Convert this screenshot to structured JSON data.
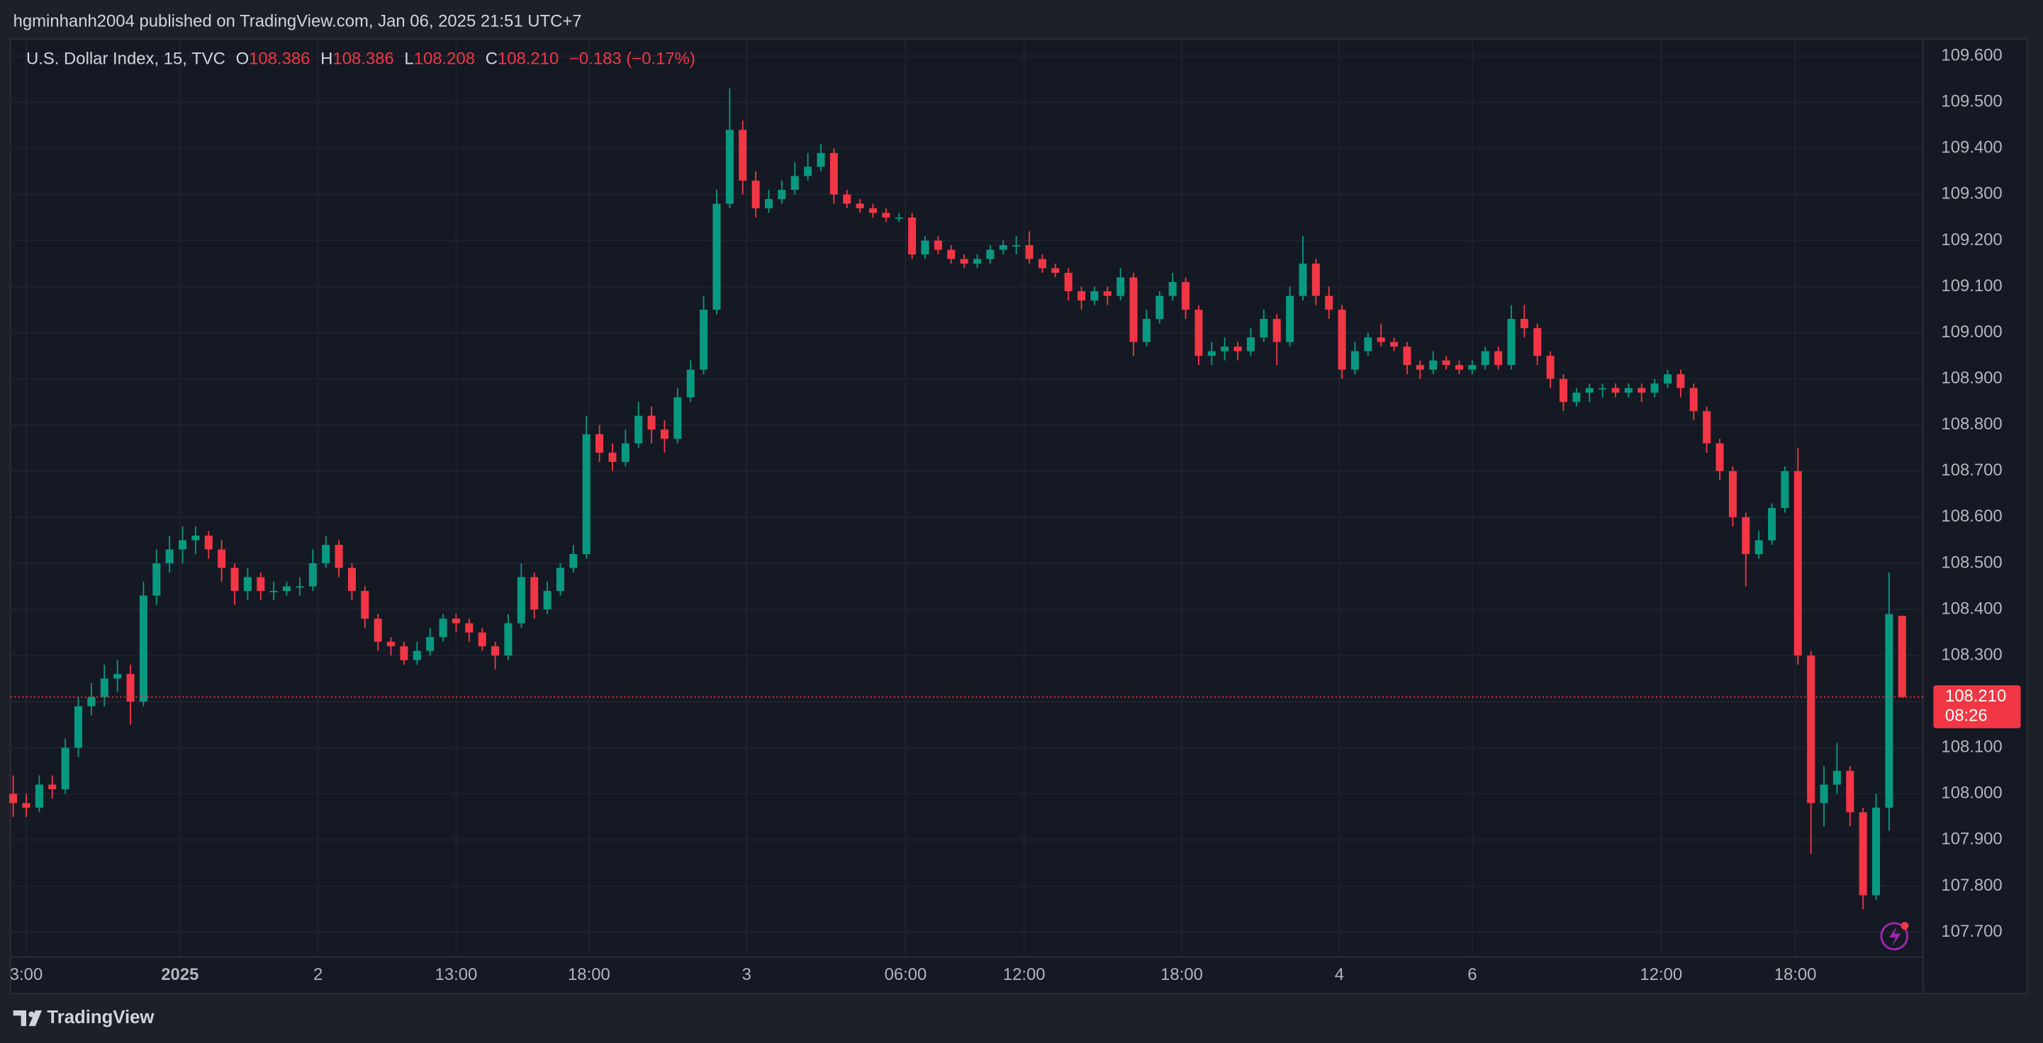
{
  "header": {
    "publisher": "hgminhanh2004 published on TradingView.com, Jan 06, 2025 21:51 UTC+7"
  },
  "footer": {
    "brand": "TradingView"
  },
  "chart_data": {
    "type": "candlestick",
    "symbol": "U.S. Dollar Index, 15, TVC",
    "ohlc_legend": [
      {
        "key": "O",
        "value": "108.386"
      },
      {
        "key": "H",
        "value": "108.386"
      },
      {
        "key": "L",
        "value": "108.208"
      },
      {
        "key": "C",
        "value": "108.210"
      }
    ],
    "change": "−0.183 (−0.17%)",
    "up_color": "#089981",
    "down_color": "#f23645",
    "grid": true,
    "ylim": [
      107.646,
      109.637
    ],
    "yticks": [
      {
        "value": 109.6,
        "label": "109.600"
      },
      {
        "value": 109.5,
        "label": "109.500"
      },
      {
        "value": 109.4,
        "label": "109.400"
      },
      {
        "value": 109.3,
        "label": "109.300"
      },
      {
        "value": 109.2,
        "label": "109.200"
      },
      {
        "value": 109.1,
        "label": "109.100"
      },
      {
        "value": 109.0,
        "label": "109.000"
      },
      {
        "value": 108.9,
        "label": "108.900"
      },
      {
        "value": 108.8,
        "label": "108.800"
      },
      {
        "value": 108.7,
        "label": "108.700"
      },
      {
        "value": 108.6,
        "label": "108.600"
      },
      {
        "value": 108.5,
        "label": "108.500"
      },
      {
        "value": 108.4,
        "label": "108.400"
      },
      {
        "value": 108.3,
        "label": "108.300"
      },
      {
        "value": 108.2,
        "label": "108.200"
      },
      {
        "value": 108.1,
        "label": "108.100"
      },
      {
        "value": 108.0,
        "label": "108.000"
      },
      {
        "value": 107.9,
        "label": "107.900"
      },
      {
        "value": 107.8,
        "label": "107.800"
      },
      {
        "value": 107.7,
        "label": "107.700"
      }
    ],
    "xlim": [
      -0.2,
      146.6
    ],
    "xticks": [
      {
        "value": 1,
        "label": "3:00"
      },
      {
        "value": 12.8,
        "label": "2025"
      },
      {
        "value": 23.4,
        "label": "2"
      },
      {
        "value": 34,
        "label": "13:00"
      },
      {
        "value": 44.2,
        "label": "18:00"
      },
      {
        "value": 56.3,
        "label": "3"
      },
      {
        "value": 68.5,
        "label": "06:00"
      },
      {
        "value": 77.6,
        "label": "12:00"
      },
      {
        "value": 89.7,
        "label": "18:00"
      },
      {
        "value": 101.8,
        "label": "4"
      },
      {
        "value": 112,
        "label": "6"
      },
      {
        "value": 126.5,
        "label": "12:00"
      },
      {
        "value": 136.8,
        "label": "18:00"
      }
    ],
    "last_price": {
      "value": 108.21,
      "label": "108.210"
    },
    "countdown": "08:26",
    "candles": [
      [
        108.0,
        108.04,
        107.95,
        107.98
      ],
      [
        107.98,
        108.0,
        107.95,
        107.97
      ],
      [
        107.97,
        108.04,
        107.96,
        108.02
      ],
      [
        108.02,
        108.04,
        107.99,
        108.01
      ],
      [
        108.01,
        108.12,
        108.0,
        108.1
      ],
      [
        108.1,
        108.21,
        108.08,
        108.19
      ],
      [
        108.19,
        108.24,
        108.17,
        108.21
      ],
      [
        108.21,
        108.28,
        108.19,
        108.25
      ],
      [
        108.25,
        108.29,
        108.22,
        108.26
      ],
      [
        108.26,
        108.28,
        108.15,
        108.2
      ],
      [
        108.2,
        108.46,
        108.19,
        108.43
      ],
      [
        108.43,
        108.53,
        108.41,
        108.5
      ],
      [
        108.5,
        108.56,
        108.48,
        108.53
      ],
      [
        108.53,
        108.58,
        108.5,
        108.55
      ],
      [
        108.55,
        108.58,
        108.52,
        108.56
      ],
      [
        108.56,
        108.57,
        108.51,
        108.53
      ],
      [
        108.53,
        108.55,
        108.46,
        108.49
      ],
      [
        108.49,
        108.5,
        108.41,
        108.44
      ],
      [
        108.44,
        108.49,
        108.42,
        108.47
      ],
      [
        108.47,
        108.48,
        108.42,
        108.44
      ],
      [
        108.44,
        108.46,
        108.42,
        108.44
      ],
      [
        108.44,
        108.46,
        108.43,
        108.45
      ],
      [
        108.45,
        108.47,
        108.43,
        108.45
      ],
      [
        108.45,
        108.53,
        108.44,
        108.5
      ],
      [
        108.5,
        108.56,
        108.49,
        108.54
      ],
      [
        108.54,
        108.55,
        108.47,
        108.49
      ],
      [
        108.49,
        108.5,
        108.42,
        108.44
      ],
      [
        108.44,
        108.45,
        108.36,
        108.38
      ],
      [
        108.38,
        108.39,
        108.31,
        108.33
      ],
      [
        108.33,
        108.34,
        108.3,
        108.32
      ],
      [
        108.32,
        108.33,
        108.28,
        108.29
      ],
      [
        108.29,
        108.33,
        108.28,
        108.31
      ],
      [
        108.31,
        108.36,
        108.3,
        108.34
      ],
      [
        108.34,
        108.39,
        108.33,
        108.38
      ],
      [
        108.38,
        108.39,
        108.35,
        108.37
      ],
      [
        108.37,
        108.38,
        108.33,
        108.35
      ],
      [
        108.35,
        108.36,
        108.31,
        108.32
      ],
      [
        108.32,
        108.33,
        108.27,
        108.3
      ],
      [
        108.3,
        108.39,
        108.29,
        108.37
      ],
      [
        108.37,
        108.5,
        108.36,
        108.47
      ],
      [
        108.47,
        108.48,
        108.38,
        108.4
      ],
      [
        108.4,
        108.46,
        108.39,
        108.44
      ],
      [
        108.44,
        108.5,
        108.43,
        108.49
      ],
      [
        108.49,
        108.54,
        108.48,
        108.52
      ],
      [
        108.52,
        108.82,
        108.51,
        108.78
      ],
      [
        108.78,
        108.8,
        108.72,
        108.74
      ],
      [
        108.74,
        108.76,
        108.7,
        108.72
      ],
      [
        108.72,
        108.79,
        108.71,
        108.76
      ],
      [
        108.76,
        108.85,
        108.75,
        108.82
      ],
      [
        108.82,
        108.84,
        108.76,
        108.79
      ],
      [
        108.79,
        108.81,
        108.74,
        108.77
      ],
      [
        108.77,
        108.88,
        108.76,
        108.86
      ],
      [
        108.86,
        108.94,
        108.85,
        108.92
      ],
      [
        108.92,
        109.08,
        108.91,
        109.05
      ],
      [
        109.05,
        109.31,
        109.04,
        109.28
      ],
      [
        109.28,
        109.53,
        109.27,
        109.44
      ],
      [
        109.44,
        109.46,
        109.3,
        109.33
      ],
      [
        109.33,
        109.35,
        109.25,
        109.27
      ],
      [
        109.27,
        109.31,
        109.26,
        109.29
      ],
      [
        109.29,
        109.33,
        109.28,
        109.31
      ],
      [
        109.31,
        109.37,
        109.3,
        109.34
      ],
      [
        109.34,
        109.39,
        109.33,
        109.36
      ],
      [
        109.36,
        109.41,
        109.35,
        109.39
      ],
      [
        109.39,
        109.4,
        109.28,
        109.3
      ],
      [
        109.3,
        109.31,
        109.27,
        109.28
      ],
      [
        109.28,
        109.29,
        109.26,
        109.27
      ],
      [
        109.27,
        109.28,
        109.25,
        109.26
      ],
      [
        109.26,
        109.27,
        109.24,
        109.25
      ],
      [
        109.25,
        109.26,
        109.24,
        109.25
      ],
      [
        109.25,
        109.26,
        109.16,
        109.17
      ],
      [
        109.17,
        109.21,
        109.16,
        109.2
      ],
      [
        109.2,
        109.21,
        109.17,
        109.18
      ],
      [
        109.18,
        109.19,
        109.15,
        109.16
      ],
      [
        109.16,
        109.17,
        109.14,
        109.15
      ],
      [
        109.15,
        109.17,
        109.14,
        109.16
      ],
      [
        109.16,
        109.19,
        109.15,
        109.18
      ],
      [
        109.18,
        109.2,
        109.17,
        109.19
      ],
      [
        109.19,
        109.21,
        109.17,
        109.19
      ],
      [
        109.19,
        109.22,
        109.15,
        109.16
      ],
      [
        109.16,
        109.17,
        109.13,
        109.14
      ],
      [
        109.14,
        109.15,
        109.12,
        109.13
      ],
      [
        109.13,
        109.14,
        109.07,
        109.09
      ],
      [
        109.09,
        109.1,
        109.05,
        109.07
      ],
      [
        109.07,
        109.1,
        109.06,
        109.09
      ],
      [
        109.09,
        109.1,
        109.06,
        109.08
      ],
      [
        109.08,
        109.14,
        109.07,
        109.12
      ],
      [
        109.12,
        109.13,
        108.95,
        108.98
      ],
      [
        108.98,
        109.05,
        108.97,
        109.03
      ],
      [
        109.03,
        109.09,
        109.02,
        109.08
      ],
      [
        109.08,
        109.13,
        109.07,
        109.11
      ],
      [
        109.11,
        109.12,
        109.03,
        109.05
      ],
      [
        109.05,
        109.06,
        108.93,
        108.95
      ],
      [
        108.95,
        108.98,
        108.93,
        108.96
      ],
      [
        108.96,
        108.99,
        108.94,
        108.97
      ],
      [
        108.97,
        108.98,
        108.94,
        108.96
      ],
      [
        108.96,
        109.01,
        108.95,
        108.99
      ],
      [
        108.99,
        109.05,
        108.98,
        109.03
      ],
      [
        109.03,
        109.04,
        108.93,
        108.98
      ],
      [
        108.98,
        109.1,
        108.97,
        109.08
      ],
      [
        109.08,
        109.21,
        109.07,
        109.15
      ],
      [
        109.15,
        109.16,
        109.06,
        109.08
      ],
      [
        109.08,
        109.1,
        109.03,
        109.05
      ],
      [
        109.05,
        109.06,
        108.9,
        108.92
      ],
      [
        108.92,
        108.98,
        108.91,
        108.96
      ],
      [
        108.96,
        109.0,
        108.95,
        108.99
      ],
      [
        108.99,
        109.02,
        108.97,
        108.98
      ],
      [
        108.98,
        108.99,
        108.96,
        108.97
      ],
      [
        108.97,
        108.98,
        108.91,
        108.93
      ],
      [
        108.93,
        108.94,
        108.9,
        108.92
      ],
      [
        108.92,
        108.96,
        108.91,
        108.94
      ],
      [
        108.94,
        108.95,
        108.92,
        108.93
      ],
      [
        108.93,
        108.94,
        108.91,
        108.92
      ],
      [
        108.92,
        108.94,
        108.91,
        108.93
      ],
      [
        108.93,
        108.97,
        108.92,
        108.96
      ],
      [
        108.96,
        108.97,
        108.92,
        108.93
      ],
      [
        108.93,
        109.06,
        108.92,
        109.03
      ],
      [
        109.03,
        109.06,
        108.99,
        109.01
      ],
      [
        109.01,
        109.02,
        108.93,
        108.95
      ],
      [
        108.95,
        108.96,
        108.88,
        108.9
      ],
      [
        108.9,
        108.91,
        108.83,
        108.85
      ],
      [
        108.85,
        108.88,
        108.84,
        108.87
      ],
      [
        108.87,
        108.89,
        108.85,
        108.88
      ],
      [
        108.88,
        108.89,
        108.86,
        108.88
      ],
      [
        108.88,
        108.89,
        108.86,
        108.87
      ],
      [
        108.87,
        108.89,
        108.86,
        108.88
      ],
      [
        108.88,
        108.89,
        108.85,
        108.87
      ],
      [
        108.87,
        108.9,
        108.86,
        108.89
      ],
      [
        108.89,
        108.92,
        108.88,
        108.91
      ],
      [
        108.91,
        108.92,
        108.86,
        108.88
      ],
      [
        108.88,
        108.89,
        108.81,
        108.83
      ],
      [
        108.83,
        108.84,
        108.74,
        108.76
      ],
      [
        108.76,
        108.77,
        108.68,
        108.7
      ],
      [
        108.7,
        108.71,
        108.58,
        108.6
      ],
      [
        108.6,
        108.61,
        108.45,
        108.52
      ],
      [
        108.52,
        108.57,
        108.51,
        108.55
      ],
      [
        108.55,
        108.63,
        108.54,
        108.62
      ],
      [
        108.62,
        108.71,
        108.61,
        108.7
      ],
      [
        108.7,
        108.75,
        108.28,
        108.3
      ],
      [
        108.3,
        108.31,
        107.87,
        107.98
      ],
      [
        107.98,
        108.06,
        107.93,
        108.02
      ],
      [
        108.02,
        108.11,
        108.0,
        108.05
      ],
      [
        108.05,
        108.06,
        107.93,
        107.96
      ],
      [
        107.96,
        107.97,
        107.75,
        107.78
      ],
      [
        107.78,
        108.0,
        107.77,
        107.97
      ],
      [
        107.97,
        108.48,
        107.92,
        108.39
      ],
      [
        108.386,
        108.386,
        108.208,
        108.21
      ]
    ]
  }
}
